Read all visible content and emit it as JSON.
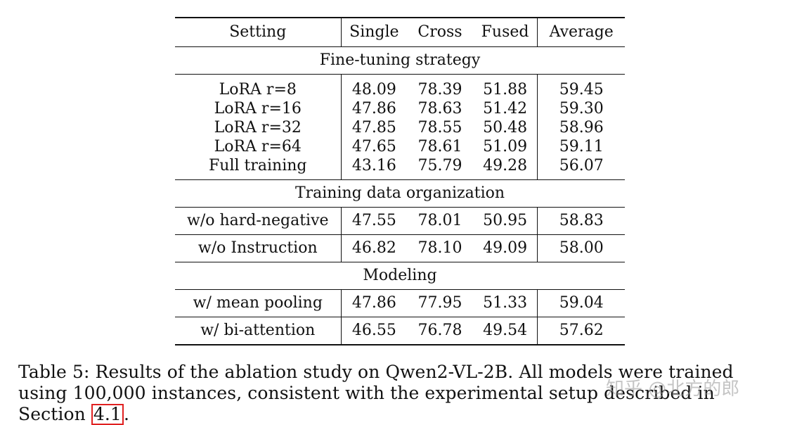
{
  "table": {
    "header": [
      "Setting",
      "Single",
      "Cross",
      "Fused",
      "Average"
    ],
    "sections": [
      {
        "title": "Fine-tuning strategy",
        "rows": [
          [
            "LoRA r=8",
            "48.09",
            "78.39",
            "51.88",
            "59.45"
          ],
          [
            "LoRA r=16",
            "47.86",
            "78.63",
            "51.42",
            "59.30"
          ],
          [
            "LoRA r=32",
            "47.85",
            "78.55",
            "50.48",
            "58.96"
          ],
          [
            "LoRA r=64",
            "47.65",
            "78.61",
            "51.09",
            "59.11"
          ],
          [
            "Full training",
            "43.16",
            "75.79",
            "49.28",
            "56.07"
          ]
        ]
      },
      {
        "title": "Training data organization",
        "rows": [
          [
            "w/o hard-negative",
            "47.55",
            "78.01",
            "50.95",
            "58.83"
          ],
          [
            "w/o Instruction",
            "46.82",
            "78.10",
            "49.09",
            "58.00"
          ]
        ]
      },
      {
        "title": "Modeling",
        "rows": [
          [
            "w/ mean pooling",
            "47.86",
            "77.95",
            "51.33",
            "59.04"
          ],
          [
            "w/ bi-attention",
            "46.55",
            "76.78",
            "49.54",
            "57.62"
          ]
        ]
      }
    ]
  },
  "caption": {
    "text": "Table 5: Results of the ablation study on Qwen2-VL-2B. All models were trained using 100,000 instances, consistent with the experimental setup described in Section ",
    "ref": "4.1",
    "end": "."
  },
  "watermark": "知乎 @北方的郎",
  "colors": {
    "highlight_box": "#e02020"
  }
}
